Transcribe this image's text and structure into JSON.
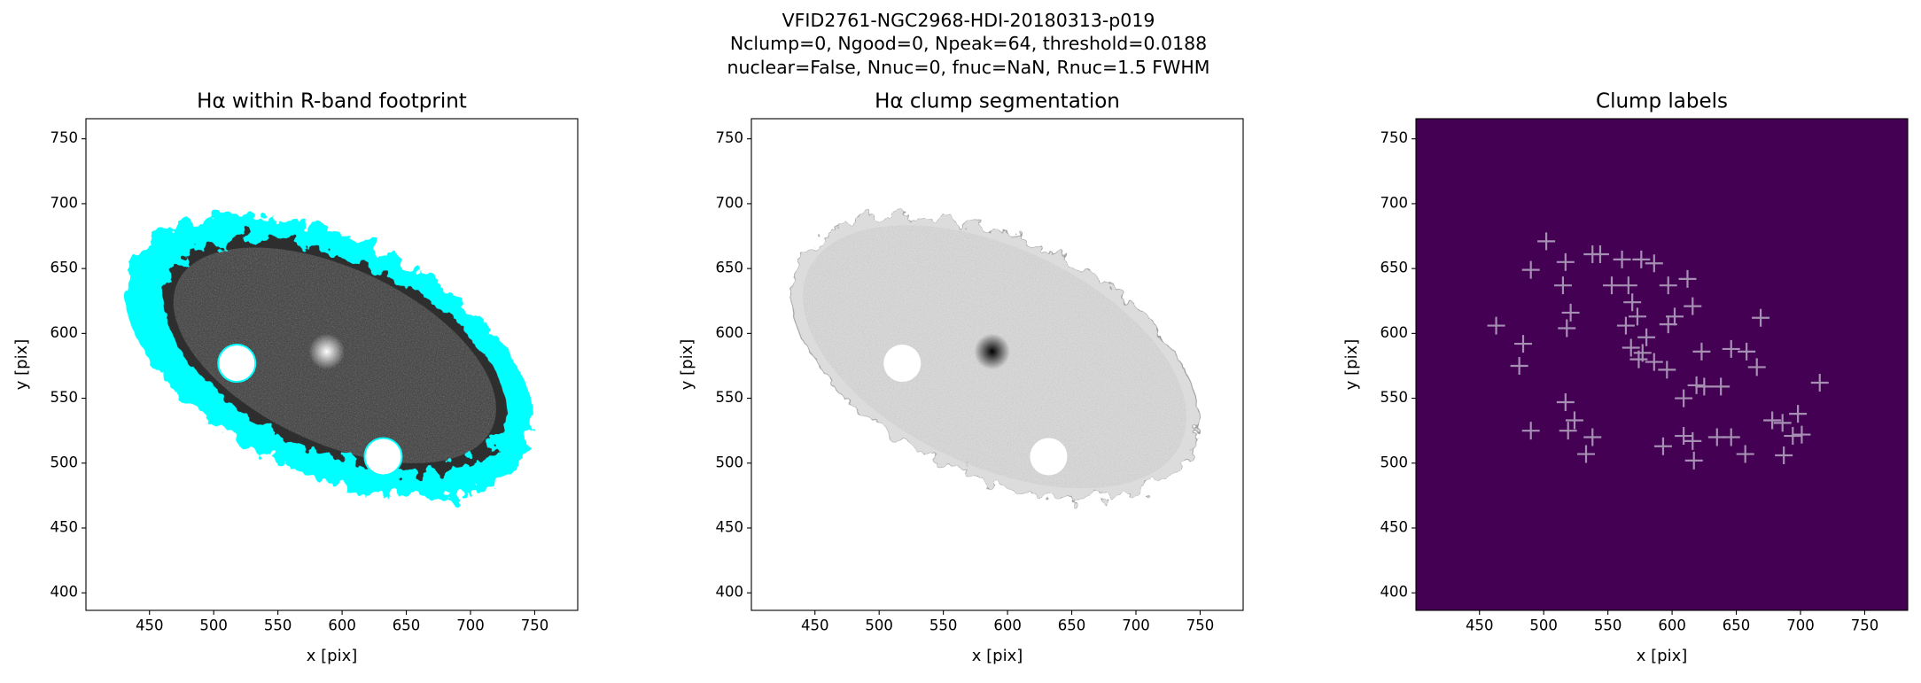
{
  "suptitle": [
    "VFID2761-NGC2968-HDI-20180313-p019",
    "Nclump=0, Ngood=0, Npeak=64, threshold=0.0188",
    "nuclear=False, Nnuc=0, fnuc=NaN, Rnuc=1.5 FWHM"
  ],
  "chart_data": [
    {
      "type": "image",
      "title": "Hα within R-band footprint",
      "xlabel": "x [pix]",
      "ylabel": "y [pix]",
      "xlim": [
        400.5,
        783.5
      ],
      "ylim": [
        386.5,
        765.5
      ],
      "xticks": [
        450,
        500,
        550,
        600,
        650,
        700,
        750
      ],
      "yticks": [
        400,
        450,
        500,
        550,
        600,
        650,
        700,
        750
      ]
    },
    {
      "type": "image",
      "title": "Hα clump segmentation",
      "xlabel": "x [pix]",
      "ylabel": "y [pix]",
      "xlim": [
        400.5,
        783.5
      ],
      "ylim": [
        386.5,
        765.5
      ],
      "xticks": [
        450,
        500,
        550,
        600,
        650,
        700,
        750
      ],
      "yticks": [
        400,
        450,
        500,
        550,
        600,
        650,
        700,
        750
      ]
    },
    {
      "type": "scatter",
      "title": "Clump labels",
      "xlabel": "x [pix]",
      "ylabel": "y [pix]",
      "xlim": [
        400.5,
        783.5
      ],
      "ylim": [
        386.5,
        765.5
      ],
      "xticks": [
        450,
        500,
        550,
        600,
        650,
        700,
        750
      ],
      "yticks": [
        400,
        450,
        500,
        550,
        600,
        650,
        700,
        750
      ],
      "background": "#440154",
      "color": "#a58fb2",
      "x": [
        502,
        490,
        517,
        515,
        538,
        544,
        561,
        576,
        586,
        463,
        521,
        518,
        484,
        481,
        553,
        566,
        569,
        573,
        564,
        597,
        612,
        616,
        602,
        597,
        580,
        568,
        577,
        574,
        586,
        596,
        623,
        646,
        658,
        666,
        669,
        609,
        619,
        625,
        638,
        490,
        517,
        524,
        519,
        538,
        533,
        593,
        609,
        616,
        617,
        635,
        646,
        657,
        678,
        686,
        687,
        694,
        701,
        698,
        715
      ],
      "y": [
        671,
        649,
        655,
        637,
        661,
        661,
        657,
        657,
        654,
        606,
        616,
        604,
        592,
        575,
        637,
        637,
        624,
        613,
        606,
        637,
        642,
        621,
        613,
        607,
        597,
        589,
        585,
        580,
        578,
        572,
        586,
        588,
        586,
        574,
        612,
        550,
        560,
        559,
        559,
        525,
        547,
        533,
        525,
        520,
        507,
        513,
        521,
        517,
        502,
        520,
        520,
        507,
        533,
        531,
        506,
        521,
        522,
        538,
        562
      ]
    }
  ]
}
